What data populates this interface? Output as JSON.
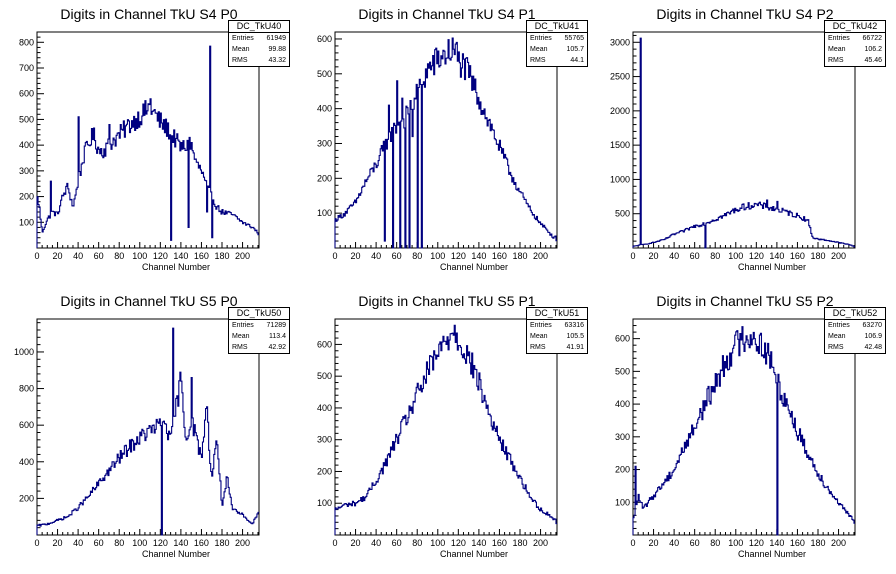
{
  "chart_data": [
    {
      "type": "bar",
      "title": "Digits in Channel TkU S4 P0",
      "xlabel": "Channel Number",
      "ylabel": "",
      "xlim": [
        0,
        216
      ],
      "ylim": [
        0,
        840
      ],
      "xticks": [
        0,
        20,
        40,
        60,
        80,
        100,
        120,
        140,
        160,
        180,
        200
      ],
      "yticks": [
        100,
        200,
        300,
        400,
        500,
        600,
        700,
        800
      ],
      "stats": {
        "name": "DC_TkU40",
        "entries": "61949",
        "mean": "99.88",
        "rms": "43.32"
      },
      "profile": [
        [
          0,
          200
        ],
        [
          2,
          170
        ],
        [
          5,
          60
        ],
        [
          10,
          110
        ],
        [
          15,
          140
        ],
        [
          20,
          130
        ],
        [
          25,
          200
        ],
        [
          30,
          240
        ],
        [
          35,
          160
        ],
        [
          40,
          250
        ],
        [
          45,
          350
        ],
        [
          50,
          410
        ],
        [
          55,
          440
        ],
        [
          60,
          380
        ],
        [
          65,
          380
        ],
        [
          70,
          400
        ],
        [
          80,
          440
        ],
        [
          90,
          480
        ],
        [
          100,
          510
        ],
        [
          110,
          550
        ],
        [
          118,
          500
        ],
        [
          125,
          470
        ],
        [
          130,
          450
        ],
        [
          135,
          420
        ],
        [
          140,
          390
        ],
        [
          150,
          400
        ],
        [
          155,
          330
        ],
        [
          160,
          300
        ],
        [
          165,
          240
        ],
        [
          170,
          200
        ],
        [
          175,
          160
        ],
        [
          180,
          140
        ],
        [
          190,
          130
        ],
        [
          200,
          100
        ],
        [
          210,
          80
        ],
        [
          216,
          55
        ]
      ],
      "spikes": [
        [
          13,
          260
        ],
        [
          40,
          510
        ],
        [
          50,
          400
        ],
        [
          70,
          480
        ],
        [
          110,
          580
        ],
        [
          130,
          30
        ],
        [
          147,
          80
        ],
        [
          148,
          430
        ],
        [
          165,
          140
        ],
        [
          168,
          785
        ],
        [
          170,
          40
        ]
      ]
    },
    {
      "type": "bar",
      "title": "Digits in Channel TkU S4 P1",
      "xlabel": "Channel Number",
      "ylabel": "",
      "xlim": [
        0,
        216
      ],
      "ylim": [
        0,
        620
      ],
      "xticks": [
        0,
        20,
        40,
        60,
        80,
        100,
        120,
        140,
        160,
        180,
        200
      ],
      "yticks": [
        100,
        200,
        300,
        400,
        500,
        600
      ],
      "stats": {
        "name": "DC_TkU41",
        "entries": "55765",
        "mean": "105.7",
        "rms": "44.1"
      },
      "profile": [
        [
          0,
          80
        ],
        [
          10,
          100
        ],
        [
          20,
          130
        ],
        [
          30,
          190
        ],
        [
          40,
          240
        ],
        [
          50,
          300
        ],
        [
          60,
          350
        ],
        [
          70,
          380
        ],
        [
          80,
          440
        ],
        [
          90,
          510
        ],
        [
          100,
          540
        ],
        [
          110,
          560
        ],
        [
          115,
          570
        ],
        [
          120,
          540
        ],
        [
          130,
          500
        ],
        [
          140,
          430
        ],
        [
          150,
          360
        ],
        [
          160,
          290
        ],
        [
          170,
          220
        ],
        [
          180,
          160
        ],
        [
          190,
          110
        ],
        [
          200,
          70
        ],
        [
          210,
          40
        ],
        [
          216,
          25
        ]
      ],
      "spikes": [
        [
          48,
          20
        ],
        [
          52,
          410
        ],
        [
          56,
          0
        ],
        [
          60,
          480
        ],
        [
          63,
          0
        ],
        [
          65,
          430
        ],
        [
          68,
          0
        ],
        [
          72,
          0
        ],
        [
          75,
          320
        ],
        [
          80,
          0
        ],
        [
          84,
          0
        ],
        [
          118,
          590
        ]
      ]
    },
    {
      "type": "bar",
      "title": "Digits in Channel TkU S4 P2",
      "xlabel": "Channel Number",
      "ylabel": "",
      "xlim": [
        0,
        216
      ],
      "ylim": [
        0,
        3150
      ],
      "xticks": [
        0,
        20,
        40,
        60,
        80,
        100,
        120,
        140,
        160,
        180,
        200
      ],
      "yticks": [
        500,
        1000,
        1500,
        2000,
        2500,
        3000
      ],
      "stats": {
        "name": "DC_TkU42",
        "entries": "66722",
        "mean": "106.2",
        "rms": "45.46"
      },
      "profile": [
        [
          0,
          20
        ],
        [
          5,
          40
        ],
        [
          10,
          50
        ],
        [
          20,
          80
        ],
        [
          30,
          120
        ],
        [
          40,
          200
        ],
        [
          50,
          250
        ],
        [
          60,
          320
        ],
        [
          70,
          360
        ],
        [
          80,
          420
        ],
        [
          90,
          480
        ],
        [
          100,
          560
        ],
        [
          110,
          610
        ],
        [
          120,
          630
        ],
        [
          130,
          600
        ],
        [
          140,
          560
        ],
        [
          150,
          520
        ],
        [
          160,
          470
        ],
        [
          170,
          410
        ],
        [
          175,
          150
        ],
        [
          180,
          130
        ],
        [
          190,
          110
        ],
        [
          200,
          80
        ],
        [
          210,
          50
        ],
        [
          216,
          20
        ]
      ],
      "spikes": [
        [
          7,
          3060
        ],
        [
          70,
          0
        ],
        [
          130,
          700
        ],
        [
          140,
          680
        ]
      ]
    },
    {
      "type": "bar",
      "title": "Digits in Channel TkU S5 P0",
      "xlabel": "Channel Number",
      "ylabel": "",
      "xlim": [
        0,
        216
      ],
      "ylim": [
        0,
        1180
      ],
      "xticks": [
        0,
        20,
        40,
        60,
        80,
        100,
        120,
        140,
        160,
        180,
        200
      ],
      "yticks": [
        200,
        400,
        600,
        800,
        1000
      ],
      "stats": {
        "name": "DC_TkU50",
        "entries": "71289",
        "mean": "113.4",
        "rms": "42.92"
      },
      "profile": [
        [
          0,
          50
        ],
        [
          10,
          60
        ],
        [
          20,
          80
        ],
        [
          30,
          100
        ],
        [
          40,
          150
        ],
        [
          50,
          210
        ],
        [
          60,
          280
        ],
        [
          70,
          350
        ],
        [
          80,
          420
        ],
        [
          90,
          480
        ],
        [
          100,
          530
        ],
        [
          110,
          570
        ],
        [
          120,
          600
        ],
        [
          125,
          620
        ],
        [
          130,
          500
        ],
        [
          135,
          680
        ],
        [
          140,
          850
        ],
        [
          145,
          520
        ],
        [
          150,
          640
        ],
        [
          160,
          420
        ],
        [
          165,
          700
        ],
        [
          170,
          300
        ],
        [
          175,
          540
        ],
        [
          180,
          160
        ],
        [
          185,
          310
        ],
        [
          190,
          140
        ],
        [
          200,
          110
        ],
        [
          210,
          60
        ],
        [
          216,
          140
        ]
      ],
      "spikes": [
        [
          121,
          0
        ],
        [
          132,
          1130
        ],
        [
          150,
          860
        ],
        [
          165,
          700
        ],
        [
          186,
          260
        ]
      ]
    },
    {
      "type": "bar",
      "title": "Digits in Channel TkU S5 P1",
      "xlabel": "Channel Number",
      "ylabel": "",
      "xlim": [
        0,
        216
      ],
      "ylim": [
        0,
        680
      ],
      "xticks": [
        0,
        20,
        40,
        60,
        80,
        100,
        120,
        140,
        160,
        180,
        200
      ],
      "yticks": [
        100,
        200,
        300,
        400,
        500,
        600
      ],
      "stats": {
        "name": "DC_TkU51",
        "entries": "63316",
        "mean": "105.5",
        "rms": "41.91"
      },
      "profile": [
        [
          0,
          80
        ],
        [
          10,
          95
        ],
        [
          20,
          100
        ],
        [
          30,
          120
        ],
        [
          40,
          170
        ],
        [
          50,
          230
        ],
        [
          60,
          300
        ],
        [
          70,
          370
        ],
        [
          80,
          440
        ],
        [
          90,
          510
        ],
        [
          100,
          570
        ],
        [
          110,
          620
        ],
        [
          115,
          650
        ],
        [
          120,
          620
        ],
        [
          130,
          560
        ],
        [
          140,
          480
        ],
        [
          150,
          380
        ],
        [
          160,
          300
        ],
        [
          170,
          240
        ],
        [
          180,
          180
        ],
        [
          190,
          120
        ],
        [
          200,
          80
        ],
        [
          210,
          60
        ],
        [
          216,
          40
        ]
      ],
      "spikes": [
        [
          116,
          660
        ]
      ]
    },
    {
      "type": "bar",
      "title": "Digits in Channel TkU S5 P2",
      "xlabel": "Channel Number",
      "ylabel": "",
      "xlim": [
        0,
        216
      ],
      "ylim": [
        0,
        660
      ],
      "xticks": [
        0,
        20,
        40,
        60,
        80,
        100,
        120,
        140,
        160,
        180,
        200
      ],
      "yticks": [
        100,
        200,
        300,
        400,
        500,
        600
      ],
      "stats": {
        "name": "DC_TkU52",
        "entries": "63270",
        "mean": "106.9",
        "rms": "42.48"
      },
      "profile": [
        [
          0,
          40
        ],
        [
          5,
          120
        ],
        [
          10,
          80
        ],
        [
          20,
          120
        ],
        [
          30,
          160
        ],
        [
          40,
          200
        ],
        [
          50,
          270
        ],
        [
          60,
          330
        ],
        [
          70,
          400
        ],
        [
          80,
          460
        ],
        [
          90,
          530
        ],
        [
          100,
          580
        ],
        [
          110,
          610
        ],
        [
          120,
          600
        ],
        [
          130,
          560
        ],
        [
          135,
          520
        ],
        [
          140,
          470
        ],
        [
          150,
          400
        ],
        [
          160,
          320
        ],
        [
          170,
          250
        ],
        [
          180,
          190
        ],
        [
          190,
          140
        ],
        [
          200,
          100
        ],
        [
          210,
          60
        ],
        [
          216,
          40
        ]
      ],
      "spikes": [
        [
          2,
          210
        ],
        [
          140,
          0
        ],
        [
          160,
          290
        ]
      ]
    }
  ],
  "labels": {
    "entries": "Entries",
    "mean": "Mean",
    "rms": "RMS"
  },
  "colors": {
    "line": "#000080",
    "axis": "#000000",
    "background": "#ffffff"
  }
}
